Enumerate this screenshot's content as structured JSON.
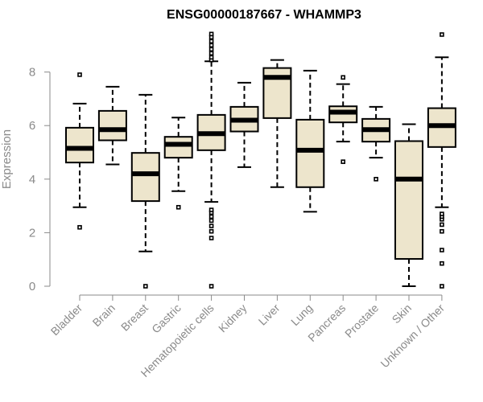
{
  "chart_data": {
    "type": "box",
    "title": "ENSG00000187667 - WHAMMP3",
    "ylabel": "Expression",
    "xlabel": "",
    "ylim": [
      0,
      9.4
    ],
    "yticks": [
      0,
      2,
      4,
      6,
      8
    ],
    "box_fill": "#ede5cc",
    "series": [
      {
        "category": "Bladder",
        "whisker_low": 2.95,
        "q1": 4.62,
        "median": 5.15,
        "q3": 5.92,
        "whisker_high": 6.82,
        "outliers": [
          2.2,
          7.9
        ]
      },
      {
        "category": "Brain",
        "whisker_low": 4.55,
        "q1": 5.45,
        "median": 5.85,
        "q3": 6.55,
        "whisker_high": 7.45,
        "outliers": []
      },
      {
        "category": "Breast",
        "whisker_low": 1.3,
        "q1": 3.18,
        "median": 4.2,
        "q3": 4.98,
        "whisker_high": 7.15,
        "outliers": [
          0.0
        ]
      },
      {
        "category": "Gastric",
        "whisker_low": 3.55,
        "q1": 4.8,
        "median": 5.3,
        "q3": 5.58,
        "whisker_high": 6.3,
        "outliers": [
          2.95
        ]
      },
      {
        "category": "Hematopoietic cells",
        "whisker_low": 3.15,
        "q1": 5.08,
        "median": 5.7,
        "q3": 6.4,
        "whisker_high": 8.4,
        "outliers": [
          0.0,
          1.8,
          2.05,
          2.25,
          2.45,
          2.6,
          2.75,
          2.85,
          8.45,
          8.55,
          8.7,
          8.85,
          9.0,
          9.15,
          9.3,
          9.42
        ]
      },
      {
        "category": "Kidney",
        "whisker_low": 4.45,
        "q1": 5.78,
        "median": 6.2,
        "q3": 6.7,
        "whisker_high": 7.6,
        "outliers": []
      },
      {
        "category": "Liver",
        "whisker_low": 3.7,
        "q1": 6.28,
        "median": 7.8,
        "q3": 8.15,
        "whisker_high": 8.45,
        "outliers": []
      },
      {
        "category": "Lung",
        "whisker_low": 2.78,
        "q1": 3.7,
        "median": 5.08,
        "q3": 6.22,
        "whisker_high": 8.05,
        "outliers": []
      },
      {
        "category": "Pancreas",
        "whisker_low": 5.4,
        "q1": 6.12,
        "median": 6.5,
        "q3": 6.72,
        "whisker_high": 7.55,
        "outliers": [
          4.65,
          7.8
        ]
      },
      {
        "category": "Prostate",
        "whisker_low": 4.8,
        "q1": 5.4,
        "median": 5.85,
        "q3": 6.25,
        "whisker_high": 6.7,
        "outliers": [
          4.0
        ]
      },
      {
        "category": "Skin",
        "whisker_low": 0.0,
        "q1": 1.02,
        "median": 4.0,
        "q3": 5.42,
        "whisker_high": 6.05,
        "outliers": []
      },
      {
        "category": "Unknown / Other",
        "whisker_low": 2.95,
        "q1": 5.2,
        "median": 6.0,
        "q3": 6.65,
        "whisker_high": 8.55,
        "outliers": [
          0.0,
          0.85,
          1.35,
          2.05,
          2.3,
          2.5,
          2.6,
          2.7,
          9.4
        ]
      }
    ]
  }
}
